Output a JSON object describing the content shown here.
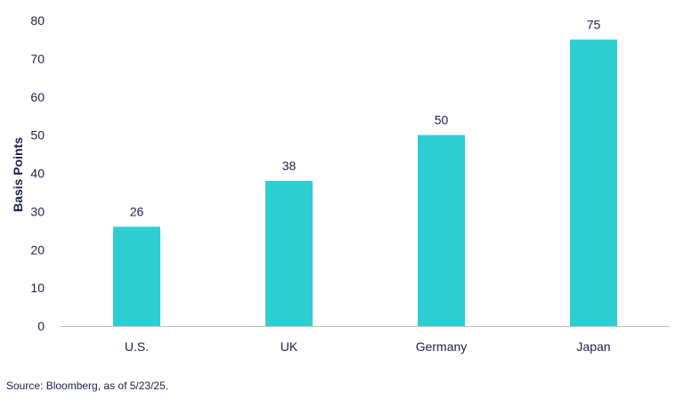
{
  "chart_data": {
    "type": "bar",
    "categories": [
      "U.S.",
      "UK",
      "Germany",
      "Japan"
    ],
    "values": [
      26,
      38,
      50,
      75
    ],
    "data_labels": [
      "26",
      "38",
      "50",
      "75"
    ],
    "title": "",
    "xlabel": "",
    "ylabel": "Basis Points",
    "ylim": [
      0,
      80
    ],
    "yticks": [
      0,
      10,
      20,
      30,
      40,
      50,
      60,
      70,
      80
    ],
    "grid": false,
    "legend": "none",
    "bar_color": "#2ecdd2",
    "text_color": "#1b1f4b",
    "axis_color": "#bdbdbd"
  },
  "footer": {
    "source": "Source: Bloomberg, as of 5/23/25."
  }
}
